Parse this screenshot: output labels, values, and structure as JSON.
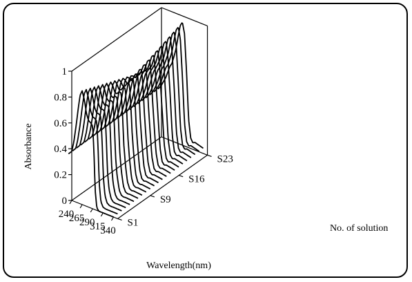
{
  "chart_data": {
    "type": "line",
    "style": "3d-waterfall",
    "xlabel": "Wavelength(nm)",
    "ylabel": "Absorbance",
    "zlabel": "No. of solution",
    "x_ticks": [
      "240",
      "265",
      "290",
      "315",
      "340"
    ],
    "y_ticks": [
      "0",
      "0.2",
      "0.4",
      "0.6",
      "0.8",
      "1"
    ],
    "z_ticks": [
      "S1",
      "S9",
      "S16",
      "S23"
    ],
    "xlim": [
      240,
      350
    ],
    "ylim": [
      0,
      1
    ],
    "series_count": 23,
    "first_series": {
      "name": "S1",
      "x": [
        232,
        240,
        245,
        250,
        255,
        260,
        265,
        270,
        275,
        280,
        285,
        290,
        293,
        296,
        300,
        305,
        315,
        325,
        335,
        340
      ],
      "y": [
        0.35,
        0.38,
        0.46,
        0.58,
        0.72,
        0.84,
        0.88,
        0.82,
        0.72,
        0.67,
        0.66,
        0.64,
        0.45,
        0.15,
        0.02,
        0.0,
        0.0,
        0.0,
        0.0,
        0.0
      ]
    },
    "last_series": {
      "name": "S23",
      "x": [
        232,
        240,
        250,
        255,
        260,
        265,
        270,
        275,
        280,
        285,
        290,
        295,
        300,
        305,
        310,
        315,
        320,
        330,
        340
      ],
      "y": [
        0.36,
        0.4,
        0.47,
        0.52,
        0.57,
        0.6,
        0.66,
        0.73,
        0.83,
        0.92,
        0.95,
        0.87,
        0.58,
        0.22,
        0.08,
        0.05,
        0.06,
        0.05,
        0.04
      ]
    }
  }
}
